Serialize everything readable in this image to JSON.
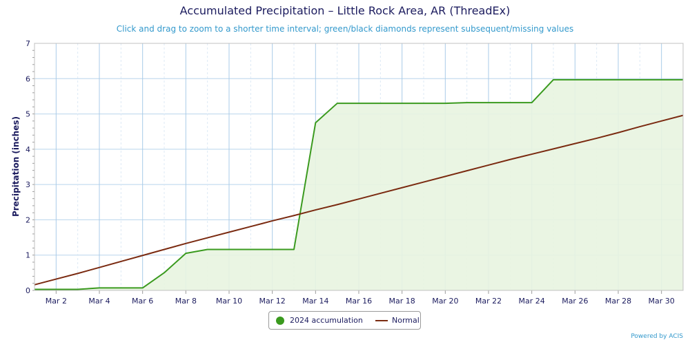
{
  "chart_data": {
    "type": "area",
    "title": "Accumulated Precipitation – Little Rock Area, AR (ThreadEx)",
    "subtitle": "Click and drag to zoom to a shorter time interval; green/black diamonds represent subsequent/missing values",
    "ylabel": "Precipitation (inches)",
    "xlabel": "",
    "ylim": [
      0,
      7
    ],
    "yticks": [
      0,
      1,
      2,
      3,
      4,
      5,
      6,
      7
    ],
    "xlim": [
      1,
      31
    ],
    "xticks": [
      {
        "day": 2,
        "label": "Mar 2"
      },
      {
        "day": 4,
        "label": "Mar 4"
      },
      {
        "day": 6,
        "label": "Mar 6"
      },
      {
        "day": 8,
        "label": "Mar 8"
      },
      {
        "day": 10,
        "label": "Mar 10"
      },
      {
        "day": 12,
        "label": "Mar 12"
      },
      {
        "day": 14,
        "label": "Mar 14"
      },
      {
        "day": 16,
        "label": "Mar 16"
      },
      {
        "day": 18,
        "label": "Mar 18"
      },
      {
        "day": 20,
        "label": "Mar 20"
      },
      {
        "day": 22,
        "label": "Mar 22"
      },
      {
        "day": 24,
        "label": "Mar 24"
      },
      {
        "day": 26,
        "label": "Mar 26"
      },
      {
        "day": 28,
        "label": "Mar 28"
      },
      {
        "day": 30,
        "label": "Mar 30"
      }
    ],
    "grid": true,
    "legend_position": "bottom",
    "series": [
      {
        "name": "2024 accumulation",
        "color": "#3a9a1e",
        "fill": "#e8f4e0",
        "x": [
          1,
          2,
          3,
          4,
          5,
          6,
          7,
          8,
          9,
          10,
          11,
          12,
          13,
          14,
          15,
          16,
          17,
          18,
          19,
          20,
          21,
          22,
          23,
          24,
          25,
          26,
          27,
          28,
          29,
          30,
          31
        ],
        "values": [
          0.03,
          0.03,
          0.03,
          0.07,
          0.07,
          0.07,
          0.5,
          1.05,
          1.16,
          1.16,
          1.16,
          1.16,
          1.16,
          4.75,
          5.3,
          5.3,
          5.3,
          5.3,
          5.3,
          5.3,
          5.32,
          5.32,
          5.32,
          5.32,
          5.97,
          5.97,
          5.97,
          5.97,
          5.97,
          5.97,
          5.97
        ]
      },
      {
        "name": "Normal",
        "color": "#7a2a10",
        "x": [
          1,
          2,
          3,
          4,
          5,
          6,
          7,
          8,
          9,
          10,
          11,
          12,
          13,
          14,
          15,
          16,
          17,
          18,
          19,
          20,
          21,
          22,
          23,
          24,
          25,
          26,
          27,
          28,
          29,
          30,
          31
        ],
        "values": [
          0.16,
          0.32,
          0.48,
          0.65,
          0.82,
          0.99,
          1.16,
          1.33,
          1.49,
          1.65,
          1.81,
          1.97,
          2.12,
          2.28,
          2.43,
          2.59,
          2.75,
          2.91,
          3.07,
          3.23,
          3.39,
          3.55,
          3.71,
          3.86,
          4.01,
          4.16,
          4.31,
          4.47,
          4.64,
          4.8,
          4.96
        ]
      }
    ]
  },
  "credit": "Powered by ACIS"
}
